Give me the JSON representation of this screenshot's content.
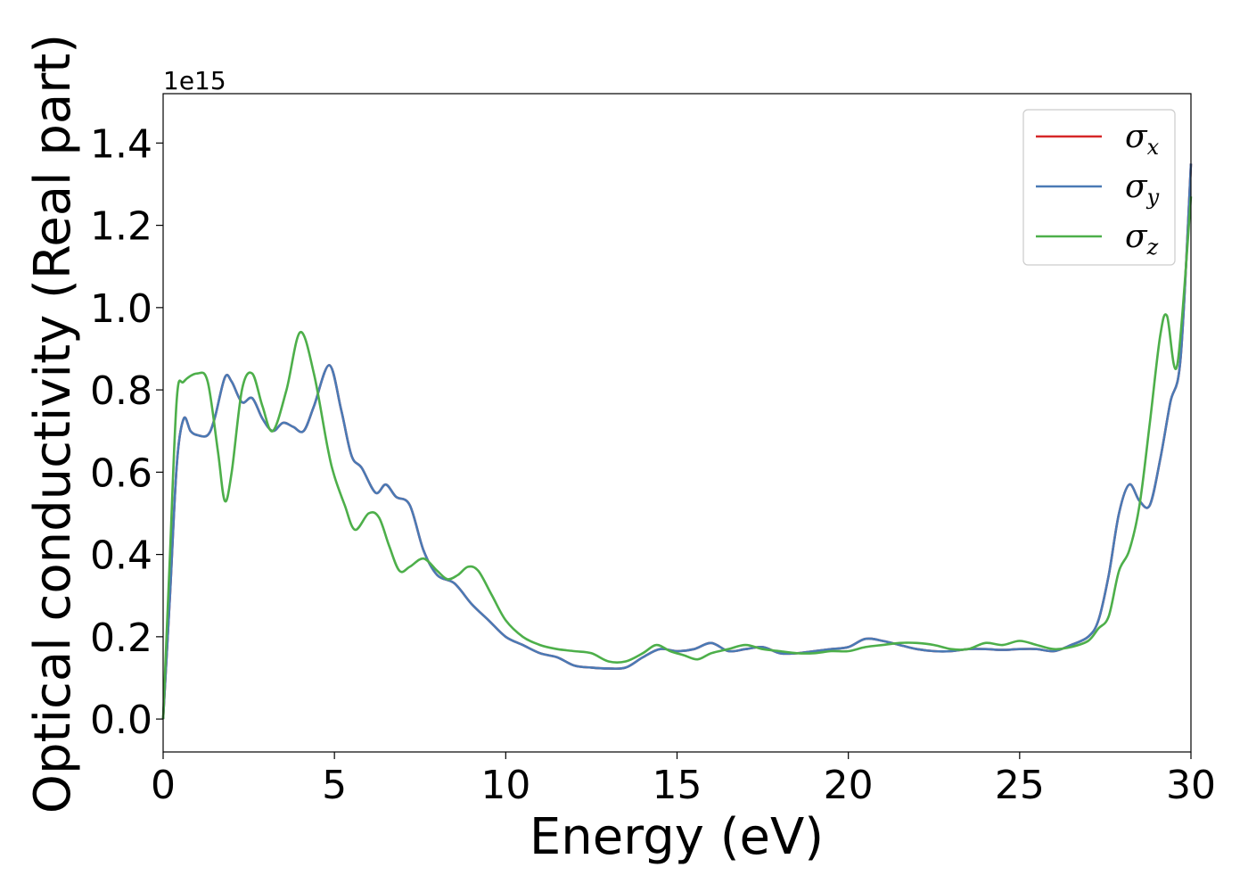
{
  "chart_data": {
    "type": "line",
    "title": "",
    "xlabel": "Energy (eV)",
    "ylabel": "Optical conductivity (Real part)",
    "y_offset_label": "1e15",
    "xlim": [
      0,
      30
    ],
    "ylim": [
      -0.08,
      1.52
    ],
    "x_ticks": [
      0,
      5,
      10,
      15,
      20,
      25,
      30
    ],
    "x_tick_labels": [
      "0",
      "5",
      "10",
      "15",
      "20",
      "25",
      "30"
    ],
    "y_ticks": [
      0.0,
      0.2,
      0.4,
      0.6,
      0.8,
      1.0,
      1.2,
      1.4
    ],
    "y_tick_labels": [
      "0.0",
      "0.2",
      "0.4",
      "0.6",
      "0.8",
      "1.0",
      "1.2",
      "1.4"
    ],
    "grid": false,
    "legend_position": "top-right",
    "series": [
      {
        "name": "σx",
        "symbol": "σ",
        "subscript": "x",
        "color": "#d62728",
        "x": [
          0,
          0.2,
          0.4,
          0.6,
          0.8,
          1.0,
          1.3,
          1.5,
          1.8,
          2.0,
          2.3,
          2.6,
          2.9,
          3.2,
          3.5,
          3.8,
          4.1,
          4.4,
          4.85,
          5.2,
          5.5,
          5.8,
          6.2,
          6.5,
          6.8,
          7.2,
          7.6,
          8.0,
          8.5,
          9.0,
          9.5,
          10.0,
          10.5,
          11.0,
          11.5,
          12.0,
          12.5,
          13.0,
          13.5,
          14.0,
          14.5,
          15.0,
          15.5,
          16.0,
          16.5,
          17.0,
          17.5,
          18.0,
          18.5,
          19.0,
          19.5,
          20.0,
          20.5,
          21.0,
          21.5,
          22.0,
          22.5,
          23.0,
          23.5,
          24.0,
          24.5,
          25.0,
          25.5,
          26.0,
          26.5,
          27.0,
          27.3,
          27.6,
          27.9,
          28.2,
          28.5,
          28.8,
          29.1,
          29.4,
          29.7,
          30.0
        ],
        "y": [
          0.0,
          0.3,
          0.62,
          0.73,
          0.7,
          0.69,
          0.69,
          0.73,
          0.83,
          0.82,
          0.77,
          0.78,
          0.73,
          0.7,
          0.72,
          0.71,
          0.7,
          0.76,
          0.86,
          0.75,
          0.64,
          0.61,
          0.55,
          0.57,
          0.54,
          0.52,
          0.41,
          0.35,
          0.33,
          0.28,
          0.24,
          0.2,
          0.18,
          0.16,
          0.15,
          0.13,
          0.125,
          0.123,
          0.125,
          0.15,
          0.17,
          0.165,
          0.17,
          0.185,
          0.165,
          0.17,
          0.175,
          0.16,
          0.16,
          0.165,
          0.17,
          0.175,
          0.195,
          0.19,
          0.18,
          0.17,
          0.165,
          0.165,
          0.17,
          0.17,
          0.168,
          0.17,
          0.17,
          0.165,
          0.18,
          0.2,
          0.24,
          0.35,
          0.5,
          0.57,
          0.53,
          0.52,
          0.63,
          0.77,
          0.88,
          1.35
        ]
      },
      {
        "name": "σy",
        "symbol": "σ",
        "subscript": "y",
        "color": "#4a7ab5",
        "x": [
          0,
          0.2,
          0.4,
          0.6,
          0.8,
          1.0,
          1.3,
          1.5,
          1.8,
          2.0,
          2.3,
          2.6,
          2.9,
          3.2,
          3.5,
          3.8,
          4.1,
          4.4,
          4.85,
          5.2,
          5.5,
          5.8,
          6.2,
          6.5,
          6.8,
          7.2,
          7.6,
          8.0,
          8.5,
          9.0,
          9.5,
          10.0,
          10.5,
          11.0,
          11.5,
          12.0,
          12.5,
          13.0,
          13.5,
          14.0,
          14.5,
          15.0,
          15.5,
          16.0,
          16.5,
          17.0,
          17.5,
          18.0,
          18.5,
          19.0,
          19.5,
          20.0,
          20.5,
          21.0,
          21.5,
          22.0,
          22.5,
          23.0,
          23.5,
          24.0,
          24.5,
          25.0,
          25.5,
          26.0,
          26.5,
          27.0,
          27.3,
          27.6,
          27.9,
          28.2,
          28.5,
          28.8,
          29.1,
          29.4,
          29.7,
          30.0
        ],
        "y": [
          0.0,
          0.3,
          0.62,
          0.73,
          0.7,
          0.69,
          0.69,
          0.73,
          0.83,
          0.82,
          0.77,
          0.78,
          0.73,
          0.7,
          0.72,
          0.71,
          0.7,
          0.76,
          0.86,
          0.75,
          0.64,
          0.61,
          0.55,
          0.57,
          0.54,
          0.52,
          0.41,
          0.35,
          0.33,
          0.28,
          0.24,
          0.2,
          0.18,
          0.16,
          0.15,
          0.13,
          0.125,
          0.123,
          0.125,
          0.15,
          0.17,
          0.165,
          0.17,
          0.185,
          0.165,
          0.17,
          0.175,
          0.16,
          0.16,
          0.165,
          0.17,
          0.175,
          0.195,
          0.19,
          0.18,
          0.17,
          0.165,
          0.165,
          0.17,
          0.17,
          0.168,
          0.17,
          0.17,
          0.165,
          0.18,
          0.2,
          0.24,
          0.35,
          0.5,
          0.57,
          0.53,
          0.52,
          0.63,
          0.77,
          0.88,
          1.35
        ]
      },
      {
        "name": "σz",
        "symbol": "σ",
        "subscript": "z",
        "color": "#4daf4a",
        "x": [
          0,
          0.2,
          0.4,
          0.6,
          1.0,
          1.3,
          1.6,
          1.8,
          2.0,
          2.3,
          2.6,
          2.9,
          3.2,
          3.6,
          4.0,
          4.4,
          4.8,
          5.0,
          5.3,
          5.6,
          6.0,
          6.3,
          6.6,
          6.9,
          7.2,
          7.6,
          8.0,
          8.3,
          8.6,
          8.9,
          9.2,
          9.6,
          10.0,
          10.5,
          11.0,
          11.5,
          12.0,
          12.5,
          13.0,
          13.5,
          14.0,
          14.4,
          14.8,
          15.2,
          15.6,
          16.0,
          16.5,
          17.0,
          17.5,
          18.0,
          18.5,
          19.0,
          19.5,
          20.0,
          20.5,
          21.0,
          21.5,
          22.0,
          22.5,
          23.0,
          23.5,
          24.0,
          24.5,
          25.0,
          25.5,
          26.0,
          26.5,
          27.0,
          27.3,
          27.6,
          27.9,
          28.2,
          28.5,
          28.8,
          29.1,
          29.3,
          29.6,
          30.0
        ],
        "y": [
          0.0,
          0.4,
          0.78,
          0.82,
          0.84,
          0.82,
          0.65,
          0.53,
          0.6,
          0.8,
          0.84,
          0.76,
          0.7,
          0.8,
          0.94,
          0.84,
          0.66,
          0.59,
          0.52,
          0.46,
          0.5,
          0.49,
          0.42,
          0.36,
          0.37,
          0.39,
          0.36,
          0.34,
          0.35,
          0.37,
          0.36,
          0.3,
          0.24,
          0.2,
          0.18,
          0.17,
          0.165,
          0.16,
          0.14,
          0.14,
          0.16,
          0.18,
          0.165,
          0.155,
          0.145,
          0.16,
          0.17,
          0.18,
          0.17,
          0.165,
          0.16,
          0.16,
          0.165,
          0.165,
          0.175,
          0.18,
          0.185,
          0.185,
          0.18,
          0.17,
          0.17,
          0.185,
          0.18,
          0.19,
          0.18,
          0.17,
          0.175,
          0.19,
          0.22,
          0.25,
          0.36,
          0.41,
          0.52,
          0.72,
          0.93,
          0.98,
          0.86,
          1.27
        ]
      }
    ]
  }
}
